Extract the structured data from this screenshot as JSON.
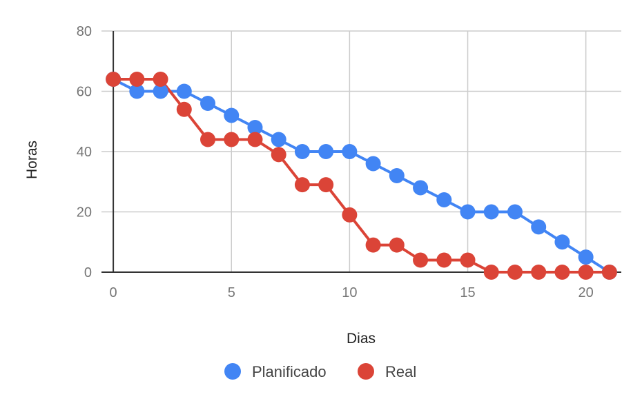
{
  "chart_data": {
    "type": "line",
    "title": "",
    "xlabel": "Dias",
    "ylabel": "Horas",
    "xlim": [
      -0.5,
      21.5
    ],
    "ylim": [
      0,
      80
    ],
    "x_ticks": [
      0,
      5,
      10,
      15,
      20
    ],
    "y_ticks": [
      0,
      20,
      40,
      60,
      80
    ],
    "grid": true,
    "legend_position": "bottom",
    "x": [
      0,
      1,
      2,
      3,
      4,
      5,
      6,
      7,
      8,
      9,
      10,
      11,
      12,
      13,
      14,
      15,
      16,
      17,
      18,
      19,
      20,
      21
    ],
    "series": [
      {
        "name": "Planificado",
        "color": "#4285F4",
        "values": [
          64,
          60,
          60,
          60,
          56,
          52,
          48,
          44,
          40,
          40,
          40,
          36,
          32,
          28,
          24,
          20,
          20,
          20,
          15,
          10,
          5,
          0
        ]
      },
      {
        "name": "Real",
        "color": "#DB4437",
        "values": [
          64,
          64,
          64,
          54,
          44,
          44,
          44,
          39,
          29,
          29,
          19,
          9,
          9,
          4,
          4,
          4,
          0,
          0,
          0,
          0,
          0,
          0
        ]
      }
    ]
  }
}
